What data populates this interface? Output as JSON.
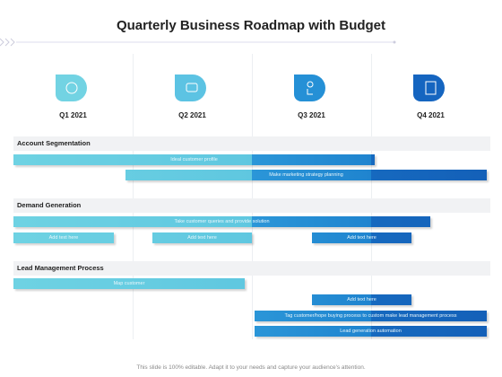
{
  "header": {
    "title": "Quarterly Business Roadmap with Budget"
  },
  "quarters": [
    "Q1 2021",
    "Q2 2021",
    "Q3 2021",
    "Q4 2021"
  ],
  "sections": [
    {
      "title": "Account  Segmentation",
      "tasks": [
        "Ideal customer profile",
        "Make marketing strategy planning"
      ]
    },
    {
      "title": "Demand Generation",
      "tasks": [
        "Take customer queries and provide solution",
        "Add text here",
        "Add text here",
        "Add text here"
      ]
    },
    {
      "title": "Lead Management Process",
      "tasks": [
        "Map customer",
        "Add text here",
        "Tag customer/hope buying process to custom make lead management process",
        "Lead generation automation"
      ]
    }
  ],
  "footer": "This slide is 100% editable. Adapt it to your needs and capture your audience's attention."
}
